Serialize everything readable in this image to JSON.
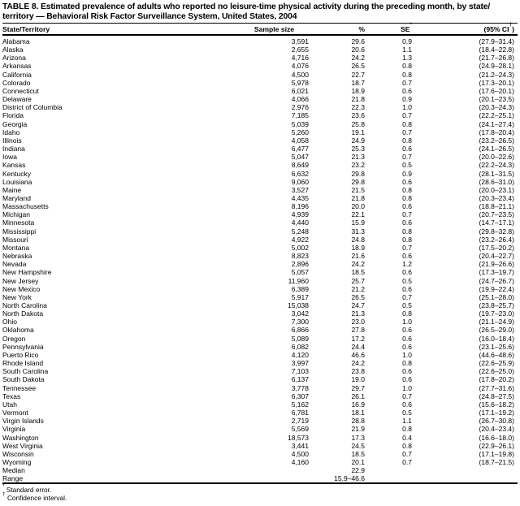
{
  "page": {
    "title_line1": "TABLE 8. Estimated prevalence of adults who reported no leisure-time physical activity during the preceding month, by state/",
    "title_line2": "territory — Behavioral Risk Factor Surveillance System, United States, 2004"
  },
  "table": {
    "header": {
      "state": "State/Territory",
      "sample_size": "Sample size",
      "pct": "%",
      "se": "SE",
      "se_sup": "*",
      "ci_pre": "(95% CI",
      "ci_sup": "†",
      "ci_post": ")"
    },
    "rows": [
      {
        "state": "Alabama",
        "n": "3,591",
        "pct": "29.6",
        "se": "0.9",
        "ci": "(27.9–31.4)"
      },
      {
        "state": "Alaska",
        "n": "2,655",
        "pct": "20.6",
        "se": "1.1",
        "ci": "(18.4–22.8)"
      },
      {
        "state": "Arizona",
        "n": "4,716",
        "pct": "24.2",
        "se": "1.3",
        "ci": "(21.7–26.8)"
      },
      {
        "state": "Arkansas",
        "n": "4,076",
        "pct": "26.5",
        "se": "0.8",
        "ci": "(24.9–28.1)"
      },
      {
        "state": "California",
        "n": "4,500",
        "pct": "22.7",
        "se": "0.8",
        "ci": "(21.2–24.3)"
      },
      {
        "state": "Colorado",
        "n": "5,978",
        "pct": "18.7",
        "se": "0.7",
        "ci": "(17.3–20.1)"
      },
      {
        "state": "Connecticut",
        "n": "6,021",
        "pct": "18.9",
        "se": "0.6",
        "ci": "(17.6–20.1)"
      },
      {
        "state": "Delaware",
        "n": "4,066",
        "pct": "21.8",
        "se": "0.9",
        "ci": "(20.1–23.5)"
      },
      {
        "state": "District of Columbia",
        "n": "2,976",
        "pct": "22.3",
        "se": "1.0",
        "ci": "(20.3–24.3)"
      },
      {
        "state": "Florida",
        "n": "7,185",
        "pct": "23.6",
        "se": "0.7",
        "ci": "(22.2–25.1)"
      },
      {
        "state": "Georgia",
        "n": "5,039",
        "pct": "25.8",
        "se": "0.8",
        "ci": "(24.1–27.4)"
      },
      {
        "state": "Idaho",
        "n": "5,260",
        "pct": "19.1",
        "se": "0.7",
        "ci": "(17.8–20.4)"
      },
      {
        "state": "Illinois",
        "n": "4,058",
        "pct": "24.9",
        "se": "0.8",
        "ci": "(23.2–26.5)"
      },
      {
        "state": "Indiana",
        "n": "6,477",
        "pct": "25.3",
        "se": "0.6",
        "ci": "(24.1–26.5)"
      },
      {
        "state": "Iowa",
        "n": "5,047",
        "pct": "21.3",
        "se": "0.7",
        "ci": "(20.0–22.6)"
      },
      {
        "state": "Kansas",
        "n": "8,649",
        "pct": "23.2",
        "se": "0.5",
        "ci": "(22.2–24.3)"
      },
      {
        "state": "Kentucky",
        "n": "6,632",
        "pct": "29.8",
        "se": "0.9",
        "ci": "(28.1–31.5)"
      },
      {
        "state": "Louisiana",
        "n": "9,060",
        "pct": "29.8",
        "se": "0.6",
        "ci": "(28.6–31.0)"
      },
      {
        "state": "Maine",
        "n": "3,527",
        "pct": "21.5",
        "se": "0.8",
        "ci": "(20.0–23.1)"
      },
      {
        "state": "Maryland",
        "n": "4,435",
        "pct": "21.8",
        "se": "0.8",
        "ci": "(20.3–23.4)"
      },
      {
        "state": "Massachusetts",
        "n": "8,196",
        "pct": "20.0",
        "se": "0.6",
        "ci": "(18.8–21.1)"
      },
      {
        "state": "Michigan",
        "n": "4,939",
        "pct": "22.1",
        "se": "0.7",
        "ci": "(20.7–23.5)"
      },
      {
        "state": "Minnesota",
        "n": "4,440",
        "pct": "15.9",
        "se": "0.6",
        "ci": "(14.7–17.1)"
      },
      {
        "state": "Mississippi",
        "n": "5,248",
        "pct": "31.3",
        "se": "0.8",
        "ci": "(29.8–32.8)"
      },
      {
        "state": "Missouri",
        "n": "4,922",
        "pct": "24.8",
        "se": "0.8",
        "ci": "(23.2–26.4)"
      },
      {
        "state": "Montana",
        "n": "5,002",
        "pct": "18.9",
        "se": "0.7",
        "ci": "(17.5–20.2)"
      },
      {
        "state": "Nebraska",
        "n": "8,823",
        "pct": "21.6",
        "se": "0.6",
        "ci": "(20.4–22.7)"
      },
      {
        "state": "Nevada",
        "n": "2,896",
        "pct": "24.2",
        "se": "1.2",
        "ci": "(21.9–26.6)"
      },
      {
        "state": "New Hampshire",
        "n": "5,057",
        "pct": "18.5",
        "se": "0.6",
        "ci": "(17.3–19.7)"
      },
      {
        "state": "New Jersey",
        "n": "11,960",
        "pct": "25.7",
        "se": "0.5",
        "ci": "(24.7–26.7)"
      },
      {
        "state": "New Mexico",
        "n": "6,389",
        "pct": "21.2",
        "se": "0.6",
        "ci": "(19.9–22.4)"
      },
      {
        "state": "New York",
        "n": "5,917",
        "pct": "26.5",
        "se": "0.7",
        "ci": "(25.1–28.0)"
      },
      {
        "state": "North Carolina",
        "n": "15,038",
        "pct": "24.7",
        "se": "0.5",
        "ci": "(23.8–25.7)"
      },
      {
        "state": "North Dakota",
        "n": "3,042",
        "pct": "21.3",
        "se": "0.8",
        "ci": "(19.7–23.0)"
      },
      {
        "state": "Ohio",
        "n": "7,300",
        "pct": "23.0",
        "se": "1.0",
        "ci": "(21.1–24.9)"
      },
      {
        "state": "Oklahoma",
        "n": "6,866",
        "pct": "27.8",
        "se": "0.6",
        "ci": "(26.5–29.0)"
      },
      {
        "state": "Oregon",
        "n": "5,089",
        "pct": "17.2",
        "se": "0.6",
        "ci": "(16.0–18.4)"
      },
      {
        "state": "Pennsylvania",
        "n": "6,082",
        "pct": "24.4",
        "se": "0.6",
        "ci": "(23.1–25.6)"
      },
      {
        "state": "Puerto Rico",
        "n": "4,120",
        "pct": "46.6",
        "se": "1.0",
        "ci": "(44.6–48.6)"
      },
      {
        "state": "Rhode Island",
        "n": "3,997",
        "pct": "24.2",
        "se": "0.8",
        "ci": "(22.6–25.9)"
      },
      {
        "state": "South Carolina",
        "n": "7,103",
        "pct": "23.8",
        "se": "0.6",
        "ci": "(22.6–25.0)"
      },
      {
        "state": "South Dakota",
        "n": "6,137",
        "pct": "19.0",
        "se": "0.6",
        "ci": "(17.8–20.2)"
      },
      {
        "state": "Tennessee",
        "n": "3,778",
        "pct": "29.7",
        "se": "1.0",
        "ci": "(27.7–31.6)"
      },
      {
        "state": "Texas",
        "n": "6,307",
        "pct": "26.1",
        "se": "0.7",
        "ci": "(24.8–27.5)"
      },
      {
        "state": "Utah",
        "n": "5,162",
        "pct": "16.9",
        "se": "0.6",
        "ci": "(15.6–18.2)"
      },
      {
        "state": "Vermont",
        "n": "6,781",
        "pct": "18.1",
        "se": "0.5",
        "ci": "(17.1–19.2)"
      },
      {
        "state": "Virgin Islands",
        "n": "2,719",
        "pct": "28.8",
        "se": "1.1",
        "ci": "(26.7–30.8)"
      },
      {
        "state": "Virginia",
        "n": "5,569",
        "pct": "21.9",
        "se": "0.8",
        "ci": "(20.4–23.4)"
      },
      {
        "state": "Washington",
        "n": "18,573",
        "pct": "17.3",
        "se": "0.4",
        "ci": "(16.6–18.0)"
      },
      {
        "state": "West Virginia",
        "n": "3,441",
        "pct": "24.5",
        "se": "0.8",
        "ci": "(22.9–26.1)"
      },
      {
        "state": "Wisconsin",
        "n": "4,500",
        "pct": "18.5",
        "se": "0.7",
        "ci": "(17.1–19.8)"
      },
      {
        "state": "Wyoming",
        "n": "4,160",
        "pct": "20.1",
        "se": "0.7",
        "ci": "(18.7–21.5)"
      }
    ],
    "summary_rows": [
      {
        "label": "Median",
        "pct": "22.9"
      },
      {
        "label": "Range",
        "pct": "15.9–46.6"
      }
    ]
  },
  "footnotes": [
    {
      "marker": "*",
      "text": "Standard error."
    },
    {
      "marker": "†",
      "text": "Confidence interval."
    }
  ]
}
